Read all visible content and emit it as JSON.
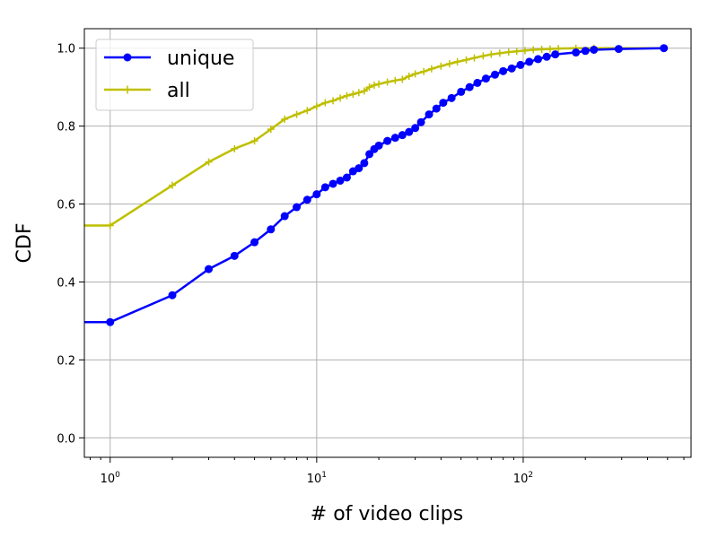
{
  "chart_data": {
    "type": "line",
    "title": "",
    "xlabel": "# of video clips",
    "ylabel": "CDF",
    "xscale": "log",
    "xlim": [
      0.75,
      650
    ],
    "ylim": [
      -0.05,
      1.05
    ],
    "grid": true,
    "legend_position": "top-left",
    "x_ticks": [
      {
        "value": 1,
        "base": "10",
        "exp": "0"
      },
      {
        "value": 10,
        "base": "10",
        "exp": "1"
      },
      {
        "value": 100,
        "base": "10",
        "exp": "2"
      }
    ],
    "y_ticks": [
      {
        "value": 0.0,
        "label": "0.0"
      },
      {
        "value": 0.2,
        "label": "0.2"
      },
      {
        "value": 0.4,
        "label": "0.4"
      },
      {
        "value": 0.6,
        "label": "0.6"
      },
      {
        "value": 0.8,
        "label": "0.8"
      },
      {
        "value": 1.0,
        "label": "1.0"
      }
    ],
    "series": [
      {
        "name": "unique",
        "color": "#0000ff",
        "marker": "circle",
        "x": [
          0.5,
          1,
          2,
          3,
          4,
          5,
          6,
          7,
          8,
          9,
          10,
          11,
          12,
          13,
          14,
          15,
          16,
          17,
          18,
          19,
          20,
          22,
          24,
          26,
          28,
          30,
          32,
          35,
          38,
          41,
          45,
          50,
          55,
          60,
          66,
          73,
          80,
          88,
          97,
          107,
          118,
          130,
          143,
          180,
          200,
          220,
          290,
          480
        ],
        "y": [
          0.297,
          0.297,
          0.366,
          0.433,
          0.467,
          0.502,
          0.535,
          0.569,
          0.592,
          0.611,
          0.625,
          0.643,
          0.652,
          0.66,
          0.668,
          0.684,
          0.692,
          0.705,
          0.728,
          0.741,
          0.75,
          0.762,
          0.77,
          0.777,
          0.785,
          0.795,
          0.81,
          0.83,
          0.845,
          0.86,
          0.872,
          0.888,
          0.9,
          0.911,
          0.922,
          0.932,
          0.941,
          0.948,
          0.957,
          0.965,
          0.972,
          0.978,
          0.984,
          0.989,
          0.993,
          0.996,
          0.998,
          1.0
        ]
      },
      {
        "name": "all",
        "color": "#bfbf00",
        "marker": "plus",
        "x": [
          0.5,
          1,
          2,
          3,
          4,
          5,
          6,
          7,
          8,
          9,
          10,
          11,
          12,
          13,
          14,
          15,
          16,
          17,
          18,
          19,
          20,
          22,
          24,
          26,
          28,
          30,
          33,
          36,
          40,
          44,
          48,
          53,
          58,
          64,
          70,
          77,
          85,
          93,
          102,
          112,
          123,
          135,
          148,
          180,
          220,
          480
        ],
        "y": [
          0.545,
          0.545,
          0.648,
          0.708,
          0.742,
          0.762,
          0.792,
          0.818,
          0.83,
          0.84,
          0.851,
          0.86,
          0.865,
          0.872,
          0.878,
          0.882,
          0.886,
          0.89,
          0.9,
          0.905,
          0.908,
          0.913,
          0.917,
          0.92,
          0.928,
          0.934,
          0.94,
          0.947,
          0.954,
          0.96,
          0.965,
          0.97,
          0.975,
          0.98,
          0.984,
          0.987,
          0.99,
          0.992,
          0.994,
          0.996,
          0.997,
          0.998,
          0.999,
          1.0,
          1.0,
          1.0
        ]
      }
    ]
  }
}
